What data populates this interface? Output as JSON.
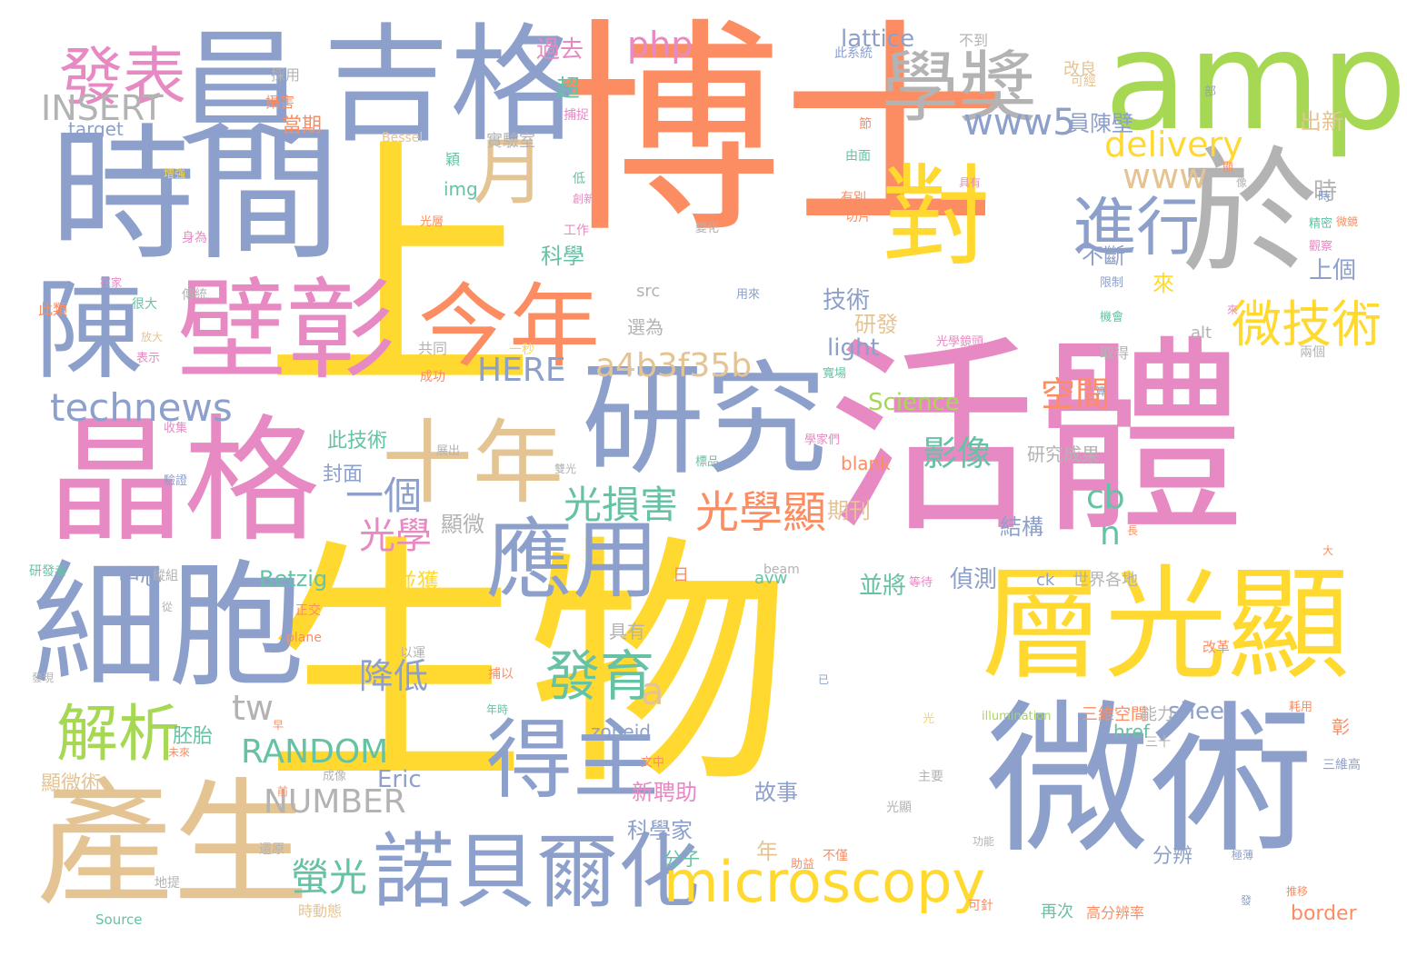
{
  "palette": {
    "orange": "#fc8d62",
    "yellow": "#ffd92f",
    "blue": "#8da0cb",
    "pink": "#e78ac3",
    "green": "#a6d854",
    "tan": "#e5c494",
    "gray": "#b3b3b3",
    "teal": "#66c2a5"
  },
  "words": [
    {
      "text": "博士",
      "color": "orange"
    },
    {
      "text": "生物",
      "color": "yellow"
    },
    {
      "text": "上",
      "color": "yellow"
    },
    {
      "text": "活體",
      "color": "pink"
    },
    {
      "text": "時間",
      "color": "blue"
    },
    {
      "text": "吉格",
      "color": "blue"
    },
    {
      "text": "晶格",
      "color": "pink"
    },
    {
      "text": "員",
      "color": "blue"
    },
    {
      "text": "amp",
      "color": "green"
    },
    {
      "text": "微術",
      "color": "blue"
    },
    {
      "text": "研究",
      "color": "blue"
    },
    {
      "text": "細胞",
      "color": "blue"
    },
    {
      "text": "層光顯",
      "color": "yellow"
    },
    {
      "text": "產生",
      "color": "tan"
    },
    {
      "text": "壁彰",
      "color": "pink"
    },
    {
      "text": "陳",
      "color": "blue"
    },
    {
      "text": "於",
      "color": "gray"
    },
    {
      "text": "對",
      "color": "yellow"
    },
    {
      "text": "應用",
      "color": "blue"
    },
    {
      "text": "十年",
      "color": "tan"
    },
    {
      "text": "今年",
      "color": "orange"
    },
    {
      "text": "得主",
      "color": "blue"
    },
    {
      "text": "學獎",
      "color": "gray"
    },
    {
      "text": "發表",
      "color": "pink"
    },
    {
      "text": "月",
      "color": "tan"
    },
    {
      "text": "諾貝爾化",
      "color": "blue"
    },
    {
      "text": "microscopy",
      "color": "yellow"
    },
    {
      "text": "進行",
      "color": "blue"
    },
    {
      "text": "微技術",
      "color": "yellow"
    },
    {
      "text": "發育",
      "color": "teal"
    },
    {
      "text": "解析",
      "color": "green"
    },
    {
      "text": "光學顯",
      "color": "orange"
    },
    {
      "text": "光損害",
      "color": "teal"
    },
    {
      "text": "technews",
      "color": "blue"
    },
    {
      "text": "a4b3f35b",
      "color": "tan"
    },
    {
      "text": "www5",
      "color": "blue"
    },
    {
      "text": "delivery",
      "color": "yellow"
    },
    {
      "text": "www",
      "color": "tan"
    },
    {
      "text": "php",
      "color": "pink"
    },
    {
      "text": "INSERT",
      "color": "gray"
    },
    {
      "text": "RANDOM",
      "color": "teal"
    },
    {
      "text": "NUMBER",
      "color": "gray"
    },
    {
      "text": "HERE",
      "color": "blue"
    },
    {
      "text": "一個",
      "color": "blue"
    },
    {
      "text": "光學",
      "color": "pink"
    },
    {
      "text": "空間",
      "color": "orange"
    },
    {
      "text": "影像",
      "color": "teal"
    },
    {
      "text": "降低",
      "color": "blue"
    },
    {
      "text": "螢光",
      "color": "teal"
    },
    {
      "text": "tw",
      "color": "gray"
    },
    {
      "text": "a",
      "color": "tan"
    },
    {
      "text": "n",
      "color": "teal"
    },
    {
      "text": "cb",
      "color": "teal"
    },
    {
      "text": "lattice",
      "color": "blue"
    },
    {
      "text": "Science",
      "color": "green"
    },
    {
      "text": "light",
      "color": "blue"
    },
    {
      "text": "Betzig",
      "color": "teal"
    },
    {
      "text": "Eric",
      "color": "blue"
    },
    {
      "text": "sheet",
      "color": "blue"
    },
    {
      "text": "target",
      "color": "blue"
    },
    {
      "text": "img",
      "color": "teal"
    },
    {
      "text": "src",
      "color": "gray"
    },
    {
      "text": "alt",
      "color": "gray"
    },
    {
      "text": "blank",
      "color": "orange"
    },
    {
      "text": "href",
      "color": "teal"
    },
    {
      "text": "border",
      "color": "orange"
    },
    {
      "text": "zoneid",
      "color": "blue"
    },
    {
      "text": "avw",
      "color": "teal"
    },
    {
      "text": "ck",
      "color": "blue"
    },
    {
      "text": "beam",
      "color": "gray"
    },
    {
      "text": "Bessel",
      "color": "tan"
    },
    {
      "text": "plane",
      "color": "orange"
    },
    {
      "text": "illumination",
      "color": "green"
    },
    {
      "text": "Source",
      "color": "teal"
    },
    {
      "text": "過去",
      "color": "pink"
    },
    {
      "text": "超",
      "color": "teal"
    },
    {
      "text": "當期",
      "color": "orange"
    },
    {
      "text": "出新",
      "color": "tan"
    },
    {
      "text": "員陳壁",
      "color": "blue"
    },
    {
      "text": "時",
      "color": "gray"
    },
    {
      "text": "技術",
      "color": "blue"
    },
    {
      "text": "研發",
      "color": "tan"
    },
    {
      "text": "上個",
      "color": "blue"
    },
    {
      "text": "不斷",
      "color": "blue"
    },
    {
      "text": "來",
      "color": "yellow"
    },
    {
      "text": "科學",
      "color": "teal"
    },
    {
      "text": "實驗室",
      "color": "gray"
    },
    {
      "text": "此技術",
      "color": "teal"
    },
    {
      "text": "封面",
      "color": "blue"
    },
    {
      "text": "顯微",
      "color": "gray"
    },
    {
      "text": "中心",
      "color": "blue"
    },
    {
      "text": "期刊",
      "color": "tan"
    },
    {
      "text": "研究成果",
      "color": "gray"
    },
    {
      "text": "結構",
      "color": "blue"
    },
    {
      "text": "並獲",
      "color": "yellow"
    },
    {
      "text": "並將",
      "color": "teal"
    },
    {
      "text": "偵測",
      "color": "blue"
    },
    {
      "text": "世界各地",
      "color": "gray"
    },
    {
      "text": "胚胎",
      "color": "teal"
    },
    {
      "text": "顯微術",
      "color": "tan"
    },
    {
      "text": "新聘助",
      "color": "pink"
    },
    {
      "text": "科學家",
      "color": "blue"
    },
    {
      "text": "分子",
      "color": "teal"
    },
    {
      "text": "年",
      "color": "tan"
    },
    {
      "text": "故事",
      "color": "blue"
    },
    {
      "text": "分辨",
      "color": "blue"
    },
    {
      "text": "三維空間",
      "color": "orange"
    },
    {
      "text": "能力",
      "color": "gray"
    },
    {
      "text": "彰",
      "color": "orange"
    },
    {
      "text": "具有",
      "color": "gray"
    },
    {
      "text": "選為",
      "color": "gray"
    },
    {
      "text": "再次",
      "color": "teal"
    },
    {
      "text": "高分辨率",
      "color": "orange"
    },
    {
      "text": "日",
      "color": "orange"
    },
    {
      "text": "攝害",
      "color": "orange"
    },
    {
      "text": "採用",
      "color": "gray"
    },
    {
      "text": "改良",
      "color": "tan"
    },
    {
      "text": "不到",
      "color": "gray"
    },
    {
      "text": "此系統",
      "color": "blue"
    },
    {
      "text": "傳統",
      "color": "gray"
    },
    {
      "text": "很大",
      "color": "teal"
    },
    {
      "text": "此類",
      "color": "orange"
    },
    {
      "text": "表示",
      "color": "pink"
    },
    {
      "text": "共同",
      "color": "gray"
    },
    {
      "text": "成功",
      "color": "orange"
    },
    {
      "text": "工作",
      "color": "pink"
    },
    {
      "text": "光層",
      "color": "orange"
    },
    {
      "text": "取得",
      "color": "gray"
    },
    {
      "text": "兩個",
      "color": "gray"
    },
    {
      "text": "主要",
      "color": "gray"
    },
    {
      "text": "功能",
      "color": "gray"
    },
    {
      "text": "三十",
      "color": "gray"
    },
    {
      "text": "三維高",
      "color": "blue"
    },
    {
      "text": "光顯",
      "color": "gray"
    },
    {
      "text": "還原",
      "color": "gray"
    },
    {
      "text": "地提",
      "color": "gray"
    },
    {
      "text": "時動態",
      "color": "tan"
    },
    {
      "text": "可針",
      "color": "orange"
    },
    {
      "text": "研發者",
      "color": "teal"
    },
    {
      "text": "縱組",
      "color": "gray"
    },
    {
      "text": "正交",
      "color": "orange"
    },
    {
      "text": "以運",
      "color": "gray"
    },
    {
      "text": "捕以",
      "color": "orange"
    },
    {
      "text": "由面",
      "color": "teal"
    },
    {
      "text": "有別",
      "color": "orange"
    },
    {
      "text": "切片",
      "color": "orange"
    },
    {
      "text": "變化",
      "color": "gray"
    },
    {
      "text": "用來",
      "color": "blue"
    },
    {
      "text": "機會",
      "color": "teal"
    },
    {
      "text": "光學鏡頭",
      "color": "pink"
    },
    {
      "text": "寬場",
      "color": "teal"
    },
    {
      "text": "文中",
      "color": "orange"
    },
    {
      "text": "助益",
      "color": "orange"
    },
    {
      "text": "不僅",
      "color": "orange"
    },
    {
      "text": "等待",
      "color": "pink"
    },
    {
      "text": "成像",
      "color": "gray"
    },
    {
      "text": "改革",
      "color": "orange"
    },
    {
      "text": "耗用",
      "color": "orange"
    },
    {
      "text": "極薄",
      "color": "blue"
    },
    {
      "text": "發",
      "color": "blue"
    },
    {
      "text": "可經",
      "color": "tan"
    },
    {
      "text": "部",
      "color": "blue"
    },
    {
      "text": "節",
      "color": "orange"
    },
    {
      "text": "時",
      "color": "blue"
    },
    {
      "text": "精密",
      "color": "teal"
    },
    {
      "text": "觀察",
      "color": "pink"
    },
    {
      "text": "微鏡",
      "color": "orange"
    },
    {
      "text": "限制",
      "color": "blue"
    },
    {
      "text": "具有",
      "color": "pink"
    },
    {
      "text": "前",
      "color": "orange"
    },
    {
      "text": "在家",
      "color": "pink"
    },
    {
      "text": "一秒",
      "color": "yellow"
    },
    {
      "text": "低",
      "color": "teal"
    },
    {
      "text": "創新",
      "color": "pink"
    },
    {
      "text": "光",
      "color": "yellow"
    },
    {
      "text": "已",
      "color": "blue"
    },
    {
      "text": "長",
      "color": "orange"
    },
    {
      "text": "早",
      "color": "orange"
    },
    {
      "text": "來",
      "color": "pink"
    },
    {
      "text": "學家們",
      "color": "pink"
    },
    {
      "text": "標品",
      "color": "teal"
    },
    {
      "text": "捕捉",
      "color": "pink"
    },
    {
      "text": "展出",
      "color": "gray"
    },
    {
      "text": "收集",
      "color": "pink"
    },
    {
      "text": "驗證",
      "color": "blue"
    },
    {
      "text": "從",
      "color": "gray"
    },
    {
      "text": "穎",
      "color": "teal"
    },
    {
      "text": "算",
      "color": "blue"
    },
    {
      "text": "推移",
      "color": "orange"
    },
    {
      "text": "年時",
      "color": "teal"
    },
    {
      "text": "顯",
      "color": "orange"
    },
    {
      "text": "增強",
      "color": "yellow"
    },
    {
      "text": "雙光",
      "color": "gray"
    },
    {
      "text": "大",
      "color": "orange"
    },
    {
      "text": "身為",
      "color": "pink"
    },
    {
      "text": "放大",
      "color": "tan"
    },
    {
      "text": "發現",
      "color": "gray"
    },
    {
      "text": "未來",
      "color": "orange"
    },
    {
      "text": "像",
      "color": "gray"
    }
  ]
}
